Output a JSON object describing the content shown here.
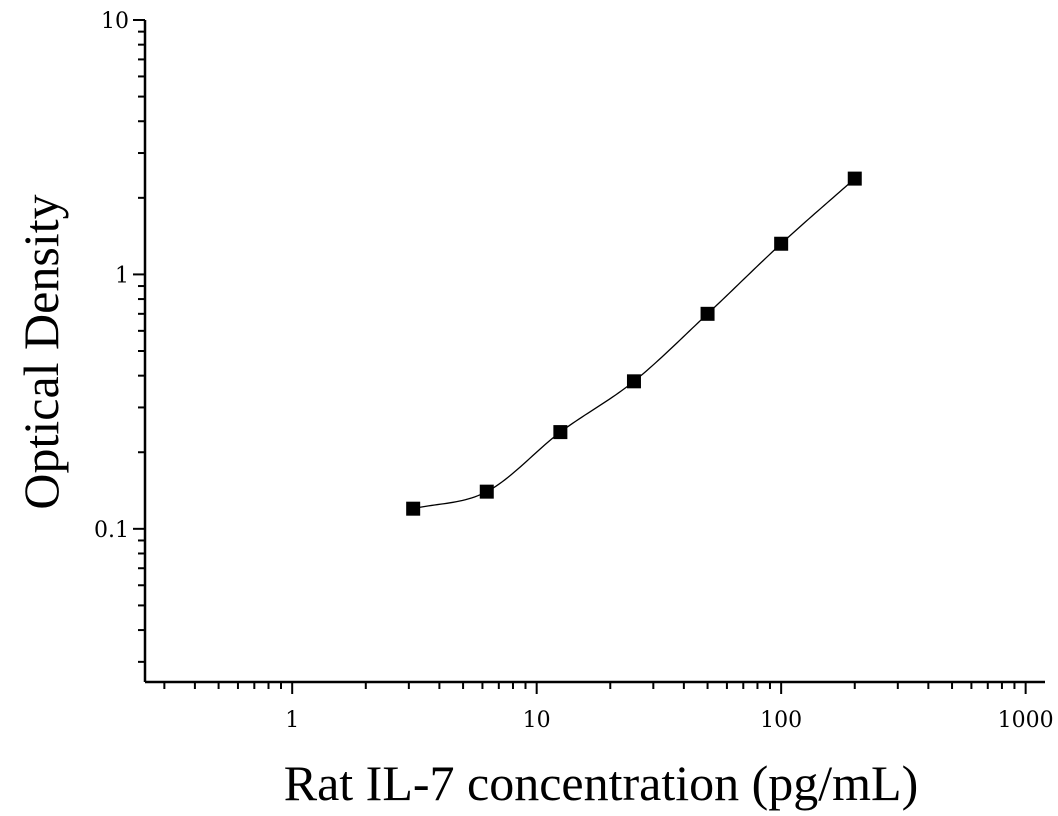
{
  "chart_data": {
    "type": "scatter",
    "xlabel": "Rat IL-7 concentration (pg/mL)",
    "ylabel": "Optical Density",
    "x_scale": "log",
    "y_scale": "log",
    "xlim": [
      0.25,
      1200
    ],
    "ylim": [
      0.025,
      10
    ],
    "x_ticks": [
      {
        "value": 1,
        "label": "1"
      },
      {
        "value": 10,
        "label": "10"
      },
      {
        "value": 100,
        "label": "100"
      },
      {
        "value": 1000,
        "label": "1000"
      }
    ],
    "y_ticks": [
      {
        "value": 0.1,
        "label": "0.1"
      },
      {
        "value": 1,
        "label": "1"
      },
      {
        "value": 10,
        "label": "10"
      }
    ],
    "grid": false,
    "marker": "square",
    "marker_color": "#000000",
    "curve_color": "#000000",
    "series": [
      {
        "x": [
          3.125,
          6.25,
          12.5,
          25,
          50,
          100,
          200
        ],
        "y": [
          0.12,
          0.14,
          0.24,
          0.38,
          0.7,
          1.32,
          2.38
        ]
      }
    ]
  }
}
